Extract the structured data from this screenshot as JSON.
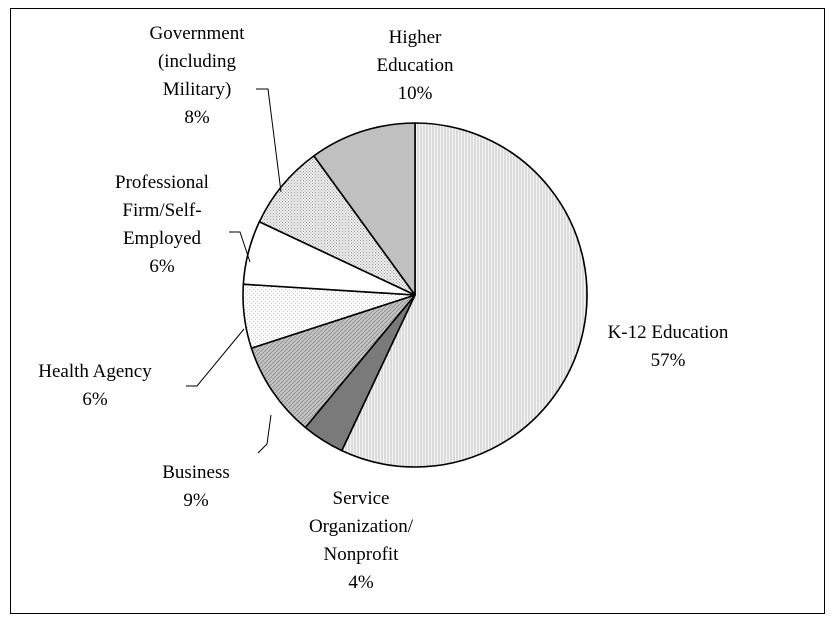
{
  "chart_data": {
    "type": "pie",
    "slices": [
      {
        "label": [
          "K-12 Education"
        ],
        "value": 57,
        "value_label": "57%",
        "fill": "hatch-light"
      },
      {
        "label": [
          "Service",
          "Organization/",
          "Nonprofit"
        ],
        "value": 4,
        "value_label": "4%",
        "fill": "#7a7a7a"
      },
      {
        "label": [
          "Business"
        ],
        "value": 9,
        "value_label": "9%",
        "fill": "hatch-diag"
      },
      {
        "label": [
          "Health Agency"
        ],
        "value": 6,
        "value_label": "6%",
        "fill": "dots-light"
      },
      {
        "label": [
          "Professional",
          "Firm/Self-",
          "Employed"
        ],
        "value": 6,
        "value_label": "6%",
        "fill": "#ffffff"
      },
      {
        "label": [
          "Government",
          "(including",
          "Military)"
        ],
        "value": 8,
        "value_label": "8%",
        "fill": "dots-dense"
      },
      {
        "label": [
          "Higher",
          "Education"
        ],
        "value": 10,
        "value_label": "10%",
        "fill": "#c0c0c0"
      }
    ],
    "start_angle_deg": -90,
    "direction": "clockwise",
    "legend": "none"
  }
}
